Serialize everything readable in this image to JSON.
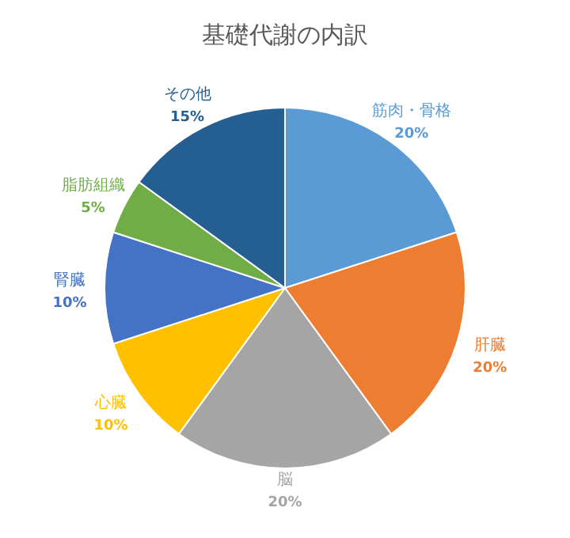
{
  "chart_data": {
    "type": "pie",
    "title": "基礎代謝の内訳",
    "categories": [
      "筋肉・骨格",
      "肝臓",
      "脳",
      "心臓",
      "腎臓",
      "脂肪組織",
      "その他"
    ],
    "values": [
      20,
      20,
      20,
      10,
      10,
      5,
      15
    ],
    "value_labels": [
      "20%",
      "20%",
      "20%",
      "10%",
      "10%",
      "5%",
      "15%"
    ],
    "colors": [
      "#5b9bd5",
      "#ed7d31",
      "#a5a5a5",
      "#ffc000",
      "#4472c4",
      "#70ad47",
      "#255e91"
    ]
  }
}
